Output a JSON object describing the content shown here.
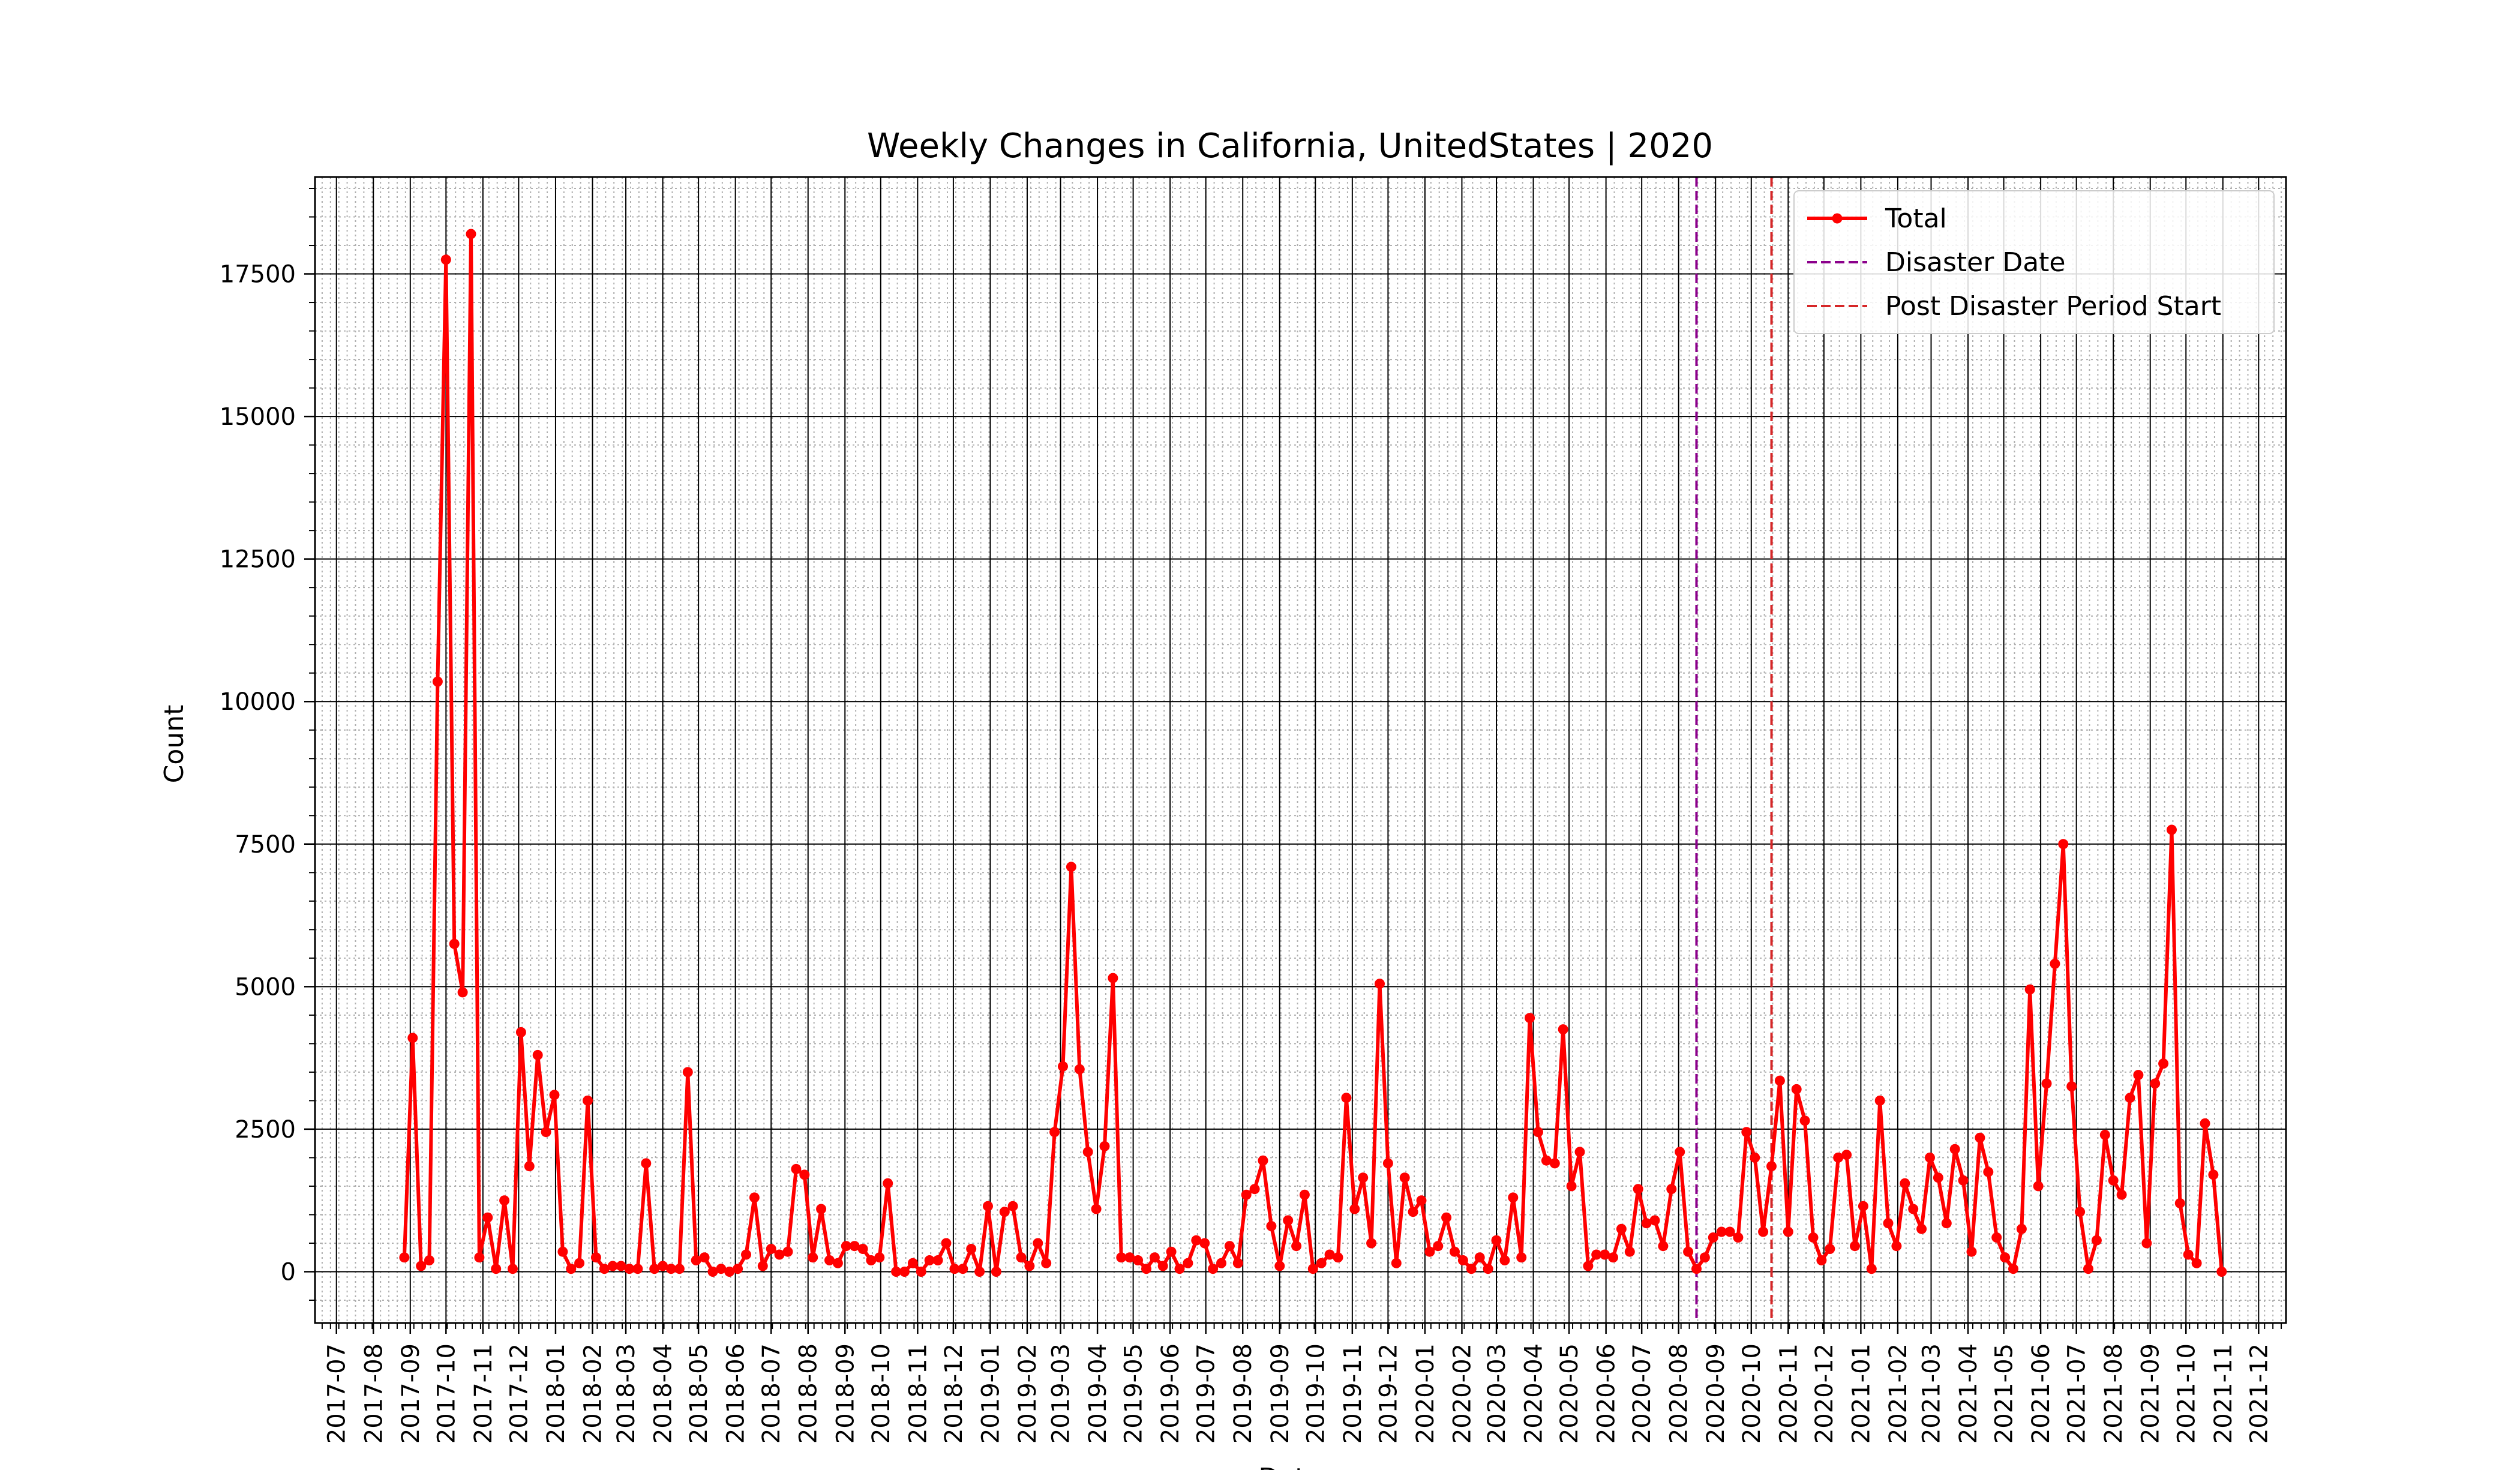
{
  "chart_data": {
    "type": "line",
    "title": "Weekly Changes in California, UnitedStates | 2020",
    "xlabel": "Date",
    "ylabel": "Count",
    "xlim": [
      "2017-06-13",
      "2021-12-24"
    ],
    "ylim": [
      -900,
      19200
    ],
    "grid": true,
    "legend_position": "top-right",
    "y_ticks": [
      0,
      2500,
      5000,
      7500,
      10000,
      12500,
      15000,
      17500
    ],
    "y_tick_labels": [
      "0",
      "2500",
      "5000",
      "7500",
      "10000",
      "12500",
      "15000",
      "17500"
    ],
    "x_ticks": [
      "2017-07-01",
      "2017-08-01",
      "2017-09-01",
      "2017-10-01",
      "2017-11-01",
      "2017-12-01",
      "2018-01-01",
      "2018-02-01",
      "2018-03-01",
      "2018-04-01",
      "2018-05-01",
      "2018-06-01",
      "2018-07-01",
      "2018-08-01",
      "2018-09-01",
      "2018-10-01",
      "2018-11-01",
      "2018-12-01",
      "2019-01-01",
      "2019-02-01",
      "2019-03-01",
      "2019-04-01",
      "2019-05-01",
      "2019-06-01",
      "2019-07-01",
      "2019-08-01",
      "2019-09-01",
      "2019-10-01",
      "2019-11-01",
      "2019-12-01",
      "2020-01-01",
      "2020-02-01",
      "2020-03-01",
      "2020-04-01",
      "2020-05-01",
      "2020-06-01",
      "2020-07-01",
      "2020-08-01",
      "2020-09-01",
      "2020-10-01",
      "2020-11-01",
      "2020-12-01",
      "2021-01-01",
      "2021-02-01",
      "2021-03-01",
      "2021-04-01",
      "2021-05-01",
      "2021-06-01",
      "2021-07-01",
      "2021-08-01",
      "2021-09-01",
      "2021-10-01",
      "2021-11-01",
      "2021-12-01"
    ],
    "x_tick_labels": [
      "2017-07",
      "2017-08",
      "2017-09",
      "2017-10",
      "2017-11",
      "2017-12",
      "2018-01",
      "2018-02",
      "2018-03",
      "2018-04",
      "2018-05",
      "2018-06",
      "2018-07",
      "2018-08",
      "2018-09",
      "2018-10",
      "2018-11",
      "2018-12",
      "2019-01",
      "2019-02",
      "2019-03",
      "2019-04",
      "2019-05",
      "2019-06",
      "2019-07",
      "2019-08",
      "2019-09",
      "2019-10",
      "2019-11",
      "2019-12",
      "2020-01",
      "2020-02",
      "2020-03",
      "2020-04",
      "2020-05",
      "2020-06",
      "2020-07",
      "2020-08",
      "2020-09",
      "2020-10",
      "2020-11",
      "2020-12",
      "2021-01",
      "2021-02",
      "2021-03",
      "2021-04",
      "2021-05",
      "2021-06",
      "2021-07",
      "2021-08",
      "2021-09",
      "2021-10",
      "2021-11",
      "2021-12"
    ],
    "series": [
      {
        "name": "Total",
        "color": "#ff0000",
        "marker": "circle",
        "start_date": "2017-08-27",
        "step_days": 7,
        "values": [
          250,
          4100,
          100,
          200,
          10350,
          17750,
          5750,
          4900,
          18200,
          250,
          950,
          50,
          1250,
          50,
          4200,
          1850,
          3800,
          2450,
          3100,
          350,
          50,
          150,
          3000,
          250,
          50,
          100,
          100,
          50,
          50,
          1900,
          50,
          100,
          50,
          50,
          3500,
          200,
          250,
          0,
          50,
          0,
          50,
          300,
          1300,
          100,
          400,
          300,
          350,
          1800,
          1700,
          250,
          1100,
          200,
          150,
          450,
          450,
          400,
          200,
          250,
          1550,
          0,
          0,
          150,
          0,
          200,
          200,
          500,
          50,
          50,
          400,
          0,
          1150,
          0,
          1050,
          1150,
          250,
          100,
          500,
          150,
          2450,
          3600,
          7100,
          3550,
          2100,
          1100,
          2200,
          5150,
          250,
          250,
          200,
          50,
          250,
          100,
          350,
          50,
          150,
          550,
          500,
          50,
          150,
          450,
          150,
          1350,
          1450,
          1950,
          800,
          100,
          900,
          450,
          1350,
          50,
          150,
          300,
          250,
          3050,
          1100,
          1650,
          500,
          5050,
          1900,
          150,
          1650,
          1050,
          1250,
          350,
          450,
          950,
          350,
          200,
          50,
          250,
          50,
          550,
          200,
          1300,
          250,
          4450,
          2450,
          1950,
          1900,
          4250,
          1500,
          2100,
          100,
          300,
          300,
          250,
          750,
          350,
          1450,
          850,
          900,
          450,
          1450,
          2100,
          350,
          50,
          250,
          600,
          700,
          700,
          600,
          2450,
          2000,
          700,
          1850,
          3350,
          700,
          3200,
          2650,
          600,
          200,
          400,
          2000,
          2050,
          450,
          1150,
          50,
          3000,
          850,
          450,
          1550,
          1100,
          750,
          2000,
          1650,
          850,
          2150,
          1600,
          350,
          2350,
          1750,
          600,
          250,
          50,
          750,
          4950,
          1500,
          3300,
          5400,
          7500,
          3250,
          1050,
          50,
          550,
          2400,
          1600,
          1350,
          3050,
          3450,
          500,
          3300,
          3650,
          7750,
          1200,
          300,
          150,
          2600,
          1700,
          0
        ]
      },
      {
        "name": "Disaster Date",
        "color": "#8b008b",
        "style": "dashed",
        "date": "2020-08-16"
      },
      {
        "name": "Post Disaster Period Start",
        "color": "#d62728",
        "style": "dashed",
        "date": "2020-10-18"
      }
    ]
  }
}
